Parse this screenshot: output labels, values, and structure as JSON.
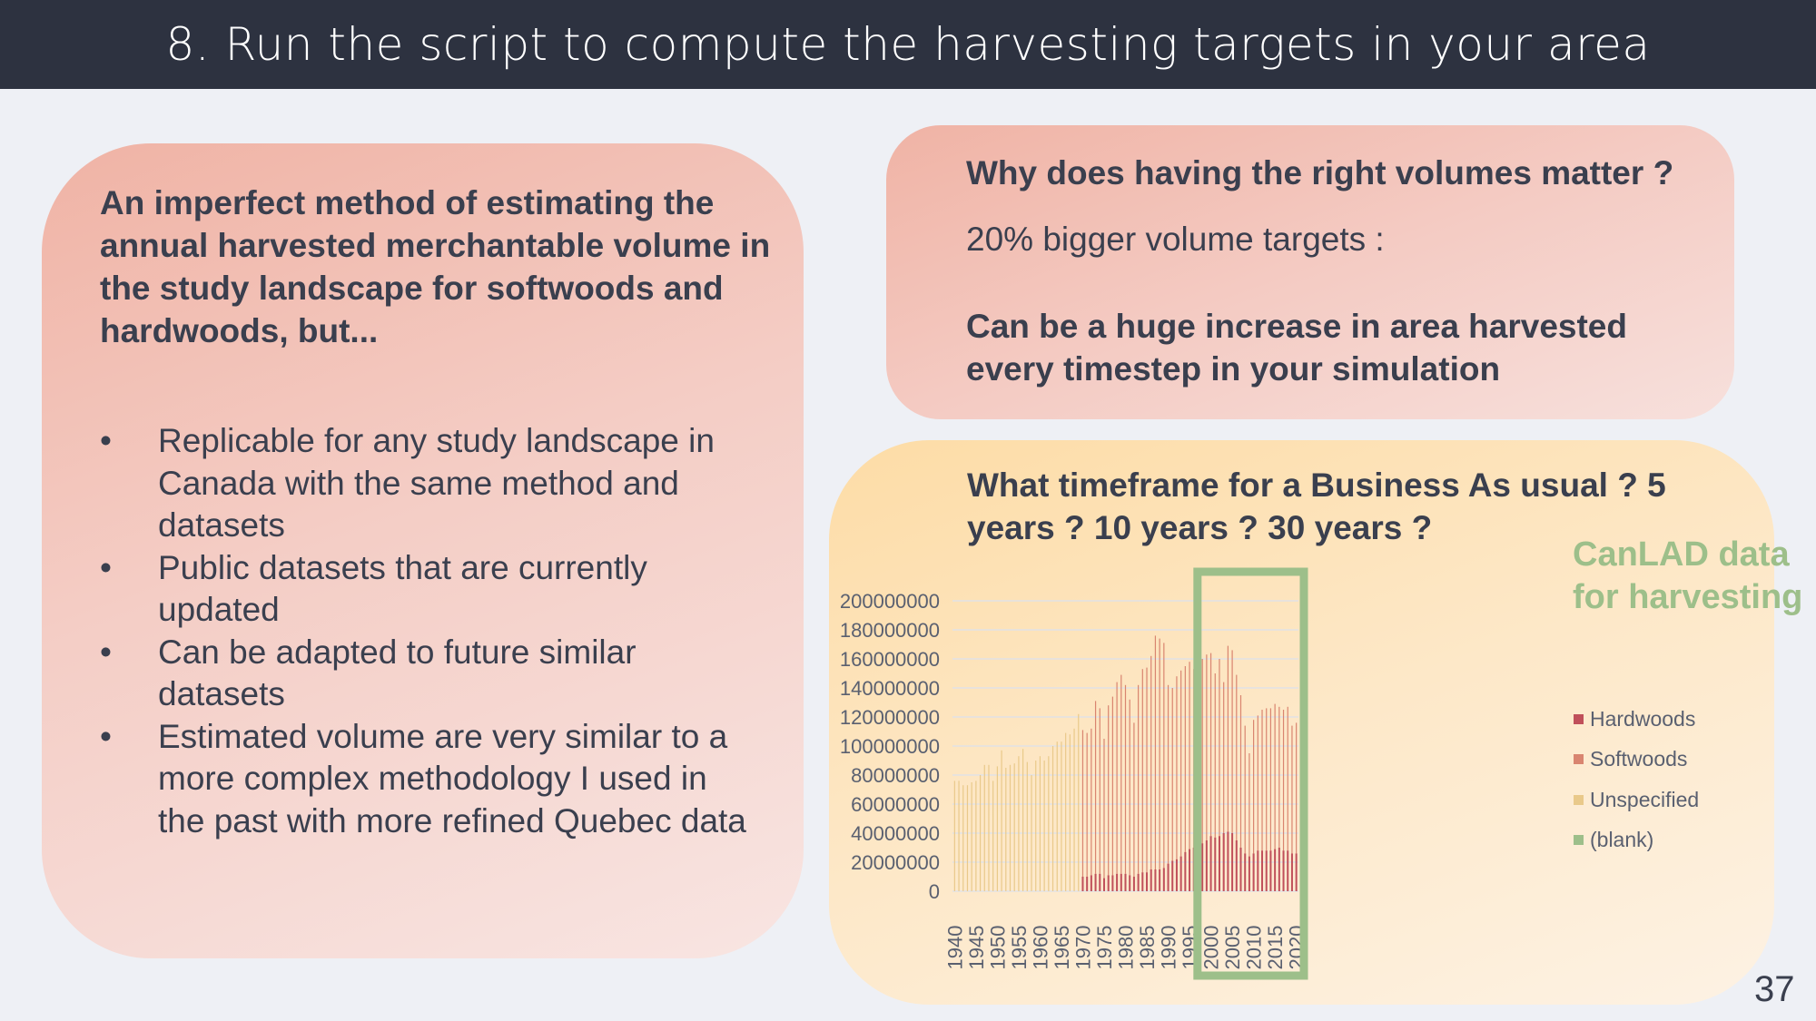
{
  "title": "8. Run the script to compute the harvesting targets in your area",
  "left": {
    "heading": "An imperfect method of estimating the annual harvested merchantable volume in the study landscape for softwoods and hardwoods, but...",
    "bullet_char": "•",
    "bullets": [
      "Replicable for any study landscape in Canada with the same method and datasets",
      "Public datasets that are currently updated",
      "Can be adapted to future similar datasets",
      "Estimated volume are very similar to a more complex methodology I used in the past with more refined Quebec data"
    ]
  },
  "top_right": {
    "question": "Why does having the right volumes matter ?",
    "point": "20% bigger volume targets :",
    "consequence": "Can be a huge increase in area harvested every timestep in your simulation"
  },
  "bottom_right": {
    "question": "What timeframe for a Business As usual ? 5 years ? 10 years ? 30 years ?",
    "annotation": "CanLAD data for harvesting"
  },
  "colors": {
    "hardwoods": "#c0505a",
    "softwoods": "#d98570",
    "unspecified": "#e9c98a",
    "blank": "#9dbf8a",
    "highlight": "#9dbf8a"
  },
  "page_number": "37",
  "chart_data": {
    "type": "bar",
    "stacked": true,
    "x_start": 1940,
    "x_end": 2020,
    "x_tick_labels": [
      "1940",
      "1945",
      "1950",
      "1955",
      "1960",
      "1965",
      "1970",
      "1975",
      "1980",
      "1985",
      "1990",
      "1995",
      "2000",
      "2005",
      "2010",
      "2015",
      "2020"
    ],
    "y_tick_labels": [
      "0",
      "20000000",
      "40000000",
      "60000000",
      "80000000",
      "100000000",
      "120000000",
      "140000000",
      "160000000",
      "180000000",
      "200000000"
    ],
    "ylim": [
      0,
      200000000
    ],
    "legend": [
      "Hardwoods",
      "Softwoods",
      "Unspecified",
      "(blank)"
    ],
    "legend_position": "right",
    "highlight_range": [
      1998,
      2020
    ],
    "unit_multiplier": 1000000,
    "totals_millions": [
      76,
      76,
      73,
      73,
      75,
      76,
      80,
      87,
      87,
      76,
      86,
      97,
      85,
      87,
      88,
      93,
      98,
      89,
      80,
      90,
      93,
      90,
      93,
      100,
      103,
      103,
      109,
      108,
      112,
      122,
      111,
      109,
      112,
      131,
      126,
      105,
      128,
      134,
      144,
      149,
      142,
      132,
      116,
      142,
      153,
      154,
      162,
      176,
      174,
      171,
      142,
      140,
      148,
      152,
      155,
      158,
      153,
      151,
      160,
      163,
      164,
      150,
      160,
      144,
      169,
      166,
      149,
      135,
      114,
      95,
      118,
      121,
      125,
      126,
      126,
      129,
      127,
      125,
      127,
      114,
      116
    ],
    "hardwoods_millions_from_1970": [
      10,
      10,
      11,
      12,
      12,
      9,
      11,
      11,
      12,
      12,
      12,
      11,
      10,
      12,
      13,
      13,
      15,
      15,
      15,
      16,
      19,
      21,
      22,
      24,
      27,
      29,
      30,
      31,
      33,
      35,
      38,
      37,
      38,
      40,
      41,
      40,
      35,
      30,
      26,
      24,
      26,
      28,
      28,
      28,
      28,
      29,
      30,
      28,
      28,
      26,
      26
    ]
  }
}
